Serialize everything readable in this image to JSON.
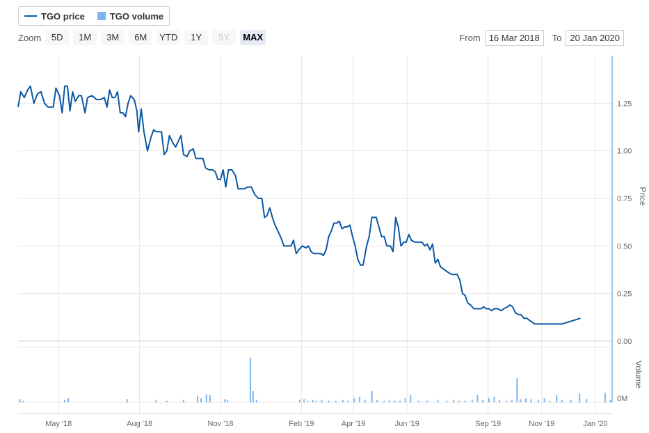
{
  "legend": {
    "price": "TGO price",
    "volume": "TGO volume"
  },
  "zoom": {
    "label": "Zoom",
    "buttons": [
      "5D",
      "1M",
      "3M",
      "6M",
      "YTD",
      "1Y",
      "5Y",
      "MAX"
    ],
    "selected": "MAX",
    "disabled": [
      "5Y"
    ]
  },
  "range": {
    "from_label": "From",
    "from_value": "16 Mar 2018",
    "to_label": "To",
    "to_value": "20 Jan 2020"
  },
  "colors": {
    "price_line": "#0b57a4",
    "volume_bar": "#7cb5ec",
    "grid": "#e6e6e6"
  },
  "chart_data": {
    "type": "line",
    "x_range": [
      "2018-03-16",
      "2020-01-20"
    ],
    "x_tick_labels": [
      "May '18",
      "Aug '18",
      "Nov '18",
      "Feb '19",
      "Apr '19",
      "Jun '19",
      "Sep '19",
      "Nov '19",
      "Jan '20"
    ],
    "y_axis_title": "Price",
    "y_ticks": [
      "0.00",
      "0.25",
      "0.50",
      "0.75",
      "1.00",
      "1.25"
    ],
    "ylim": [
      0,
      1.5
    ],
    "grid": true,
    "volume_axis_title": "Volume",
    "volume_tick": "0M",
    "series": [
      {
        "name": "TGO price",
        "points": [
          [
            "2018-03-16",
            1.23
          ],
          [
            "2018-03-19",
            1.31
          ],
          [
            "2018-03-23",
            1.28
          ],
          [
            "2018-03-27",
            1.32
          ],
          [
            "2018-03-30",
            1.34
          ],
          [
            "2018-04-03",
            1.25
          ],
          [
            "2018-04-07",
            1.3
          ],
          [
            "2018-04-11",
            1.31
          ],
          [
            "2018-04-15",
            1.25
          ],
          [
            "2018-04-19",
            1.23
          ],
          [
            "2018-04-25",
            1.23
          ],
          [
            "2018-04-28",
            1.33
          ],
          [
            "2018-05-02",
            1.29
          ],
          [
            "2018-05-05",
            1.2
          ],
          [
            "2018-05-08",
            1.34
          ],
          [
            "2018-05-11",
            1.34
          ],
          [
            "2018-05-14",
            1.21
          ],
          [
            "2018-05-17",
            1.31
          ],
          [
            "2018-05-20",
            1.26
          ],
          [
            "2018-05-24",
            1.29
          ],
          [
            "2018-05-27",
            1.29
          ],
          [
            "2018-05-31",
            1.2
          ],
          [
            "2018-06-03",
            1.28
          ],
          [
            "2018-06-08",
            1.29
          ],
          [
            "2018-06-13",
            1.27
          ],
          [
            "2018-06-18",
            1.27
          ],
          [
            "2018-06-22",
            1.28
          ],
          [
            "2018-06-25",
            1.23
          ],
          [
            "2018-06-28",
            1.32
          ],
          [
            "2018-07-01",
            1.28
          ],
          [
            "2018-07-04",
            1.28
          ],
          [
            "2018-07-07",
            1.31
          ],
          [
            "2018-07-10",
            1.2
          ],
          [
            "2018-07-13",
            1.2
          ],
          [
            "2018-07-16",
            1.18
          ],
          [
            "2018-07-19",
            1.25
          ],
          [
            "2018-07-22",
            1.29
          ],
          [
            "2018-07-26",
            1.27
          ],
          [
            "2018-07-29",
            1.21
          ],
          [
            "2018-07-31",
            1.1
          ],
          [
            "2018-08-03",
            1.22
          ],
          [
            "2018-08-06",
            1.1
          ],
          [
            "2018-08-10",
            1.0
          ],
          [
            "2018-08-14",
            1.07
          ],
          [
            "2018-08-17",
            1.11
          ],
          [
            "2018-08-20",
            1.1
          ],
          [
            "2018-08-23",
            1.1
          ],
          [
            "2018-08-26",
            1.1
          ],
          [
            "2018-08-29",
            0.98
          ],
          [
            "2018-09-01",
            1.0
          ],
          [
            "2018-09-04",
            1.08
          ],
          [
            "2018-09-08",
            1.04
          ],
          [
            "2018-09-11",
            1.02
          ],
          [
            "2018-09-14",
            1.05
          ],
          [
            "2018-09-17",
            1.08
          ],
          [
            "2018-09-20",
            0.98
          ],
          [
            "2018-09-24",
            0.97
          ],
          [
            "2018-09-27",
            1.0
          ],
          [
            "2018-10-01",
            1.01
          ],
          [
            "2018-10-04",
            0.96
          ],
          [
            "2018-10-08",
            0.96
          ],
          [
            "2018-10-12",
            0.96
          ],
          [
            "2018-10-15",
            0.91
          ],
          [
            "2018-10-19",
            0.9
          ],
          [
            "2018-10-23",
            0.9
          ],
          [
            "2018-10-26",
            0.89
          ],
          [
            "2018-10-29",
            0.85
          ],
          [
            "2018-11-01",
            0.85
          ],
          [
            "2018-11-04",
            0.9
          ],
          [
            "2018-11-07",
            0.81
          ],
          [
            "2018-11-10",
            0.9
          ],
          [
            "2018-11-14",
            0.9
          ],
          [
            "2018-11-18",
            0.87
          ],
          [
            "2018-11-21",
            0.8
          ],
          [
            "2018-11-25",
            0.8
          ],
          [
            "2018-11-28",
            0.8
          ],
          [
            "2018-12-02",
            0.81
          ],
          [
            "2018-12-06",
            0.81
          ],
          [
            "2018-12-10",
            0.77
          ],
          [
            "2018-12-14",
            0.75
          ],
          [
            "2018-12-18",
            0.75
          ],
          [
            "2018-12-21",
            0.65
          ],
          [
            "2018-12-24",
            0.66
          ],
          [
            "2018-12-27",
            0.7
          ],
          [
            "2018-12-30",
            0.65
          ],
          [
            "2019-01-02",
            0.61
          ],
          [
            "2019-01-06",
            0.57
          ],
          [
            "2019-01-09",
            0.54
          ],
          [
            "2019-01-12",
            0.5
          ],
          [
            "2019-01-16",
            0.5
          ],
          [
            "2019-01-20",
            0.5
          ],
          [
            "2019-01-23",
            0.53
          ],
          [
            "2019-01-26",
            0.46
          ],
          [
            "2019-01-29",
            0.48
          ],
          [
            "2019-02-02",
            0.5
          ],
          [
            "2019-02-06",
            0.49
          ],
          [
            "2019-02-09",
            0.5
          ],
          [
            "2019-02-12",
            0.47
          ],
          [
            "2019-02-15",
            0.46
          ],
          [
            "2019-02-19",
            0.46
          ],
          [
            "2019-02-23",
            0.46
          ],
          [
            "2019-02-26",
            0.45
          ],
          [
            "2019-03-01",
            0.48
          ],
          [
            "2019-03-04",
            0.55
          ],
          [
            "2019-03-07",
            0.58
          ],
          [
            "2019-03-10",
            0.62
          ],
          [
            "2019-03-13",
            0.62
          ],
          [
            "2019-03-16",
            0.63
          ],
          [
            "2019-03-19",
            0.59
          ],
          [
            "2019-03-22",
            0.6
          ],
          [
            "2019-03-25",
            0.6
          ],
          [
            "2019-03-28",
            0.61
          ],
          [
            "2019-03-31",
            0.55
          ],
          [
            "2019-04-03",
            0.5
          ],
          [
            "2019-04-06",
            0.43
          ],
          [
            "2019-04-09",
            0.4
          ],
          [
            "2019-04-12",
            0.4
          ],
          [
            "2019-04-16",
            0.5
          ],
          [
            "2019-04-19",
            0.55
          ],
          [
            "2019-04-22",
            0.65
          ],
          [
            "2019-04-27",
            0.65
          ],
          [
            "2019-04-30",
            0.6
          ],
          [
            "2019-05-03",
            0.55
          ],
          [
            "2019-05-06",
            0.55
          ],
          [
            "2019-05-09",
            0.5
          ],
          [
            "2019-05-13",
            0.5
          ],
          [
            "2019-05-16",
            0.47
          ],
          [
            "2019-05-19",
            0.65
          ],
          [
            "2019-05-22",
            0.6
          ],
          [
            "2019-05-25",
            0.5
          ],
          [
            "2019-05-28",
            0.52
          ],
          [
            "2019-05-31",
            0.52
          ],
          [
            "2019-06-03",
            0.56
          ],
          [
            "2019-06-06",
            0.53
          ],
          [
            "2019-06-10",
            0.52
          ],
          [
            "2019-06-14",
            0.52
          ],
          [
            "2019-06-18",
            0.52
          ],
          [
            "2019-06-21",
            0.5
          ],
          [
            "2019-06-24",
            0.51
          ],
          [
            "2019-06-27",
            0.48
          ],
          [
            "2019-06-30",
            0.51
          ],
          [
            "2019-07-03",
            0.41
          ],
          [
            "2019-07-06",
            0.43
          ],
          [
            "2019-07-09",
            0.39
          ],
          [
            "2019-07-12",
            0.38
          ],
          [
            "2019-07-15",
            0.37
          ],
          [
            "2019-07-18",
            0.36
          ],
          [
            "2019-07-22",
            0.35
          ],
          [
            "2019-07-25",
            0.35
          ],
          [
            "2019-07-28",
            0.35
          ],
          [
            "2019-07-31",
            0.32
          ],
          [
            "2019-08-03",
            0.25
          ],
          [
            "2019-08-06",
            0.24
          ],
          [
            "2019-08-09",
            0.2
          ],
          [
            "2019-08-12",
            0.19
          ],
          [
            "2019-08-16",
            0.17
          ],
          [
            "2019-08-20",
            0.17
          ],
          [
            "2019-08-24",
            0.17
          ],
          [
            "2019-08-27",
            0.18
          ],
          [
            "2019-08-30",
            0.17
          ],
          [
            "2019-09-02",
            0.17
          ],
          [
            "2019-09-05",
            0.16
          ],
          [
            "2019-09-08",
            0.17
          ],
          [
            "2019-09-12",
            0.17
          ],
          [
            "2019-09-16",
            0.16
          ],
          [
            "2019-09-19",
            0.17
          ],
          [
            "2019-09-23",
            0.18
          ],
          [
            "2019-09-26",
            0.19
          ],
          [
            "2019-09-29",
            0.18
          ],
          [
            "2019-10-02",
            0.15
          ],
          [
            "2019-10-05",
            0.14
          ],
          [
            "2019-10-08",
            0.14
          ],
          [
            "2019-10-12",
            0.12
          ],
          [
            "2019-10-15",
            0.12
          ],
          [
            "2019-10-18",
            0.11
          ],
          [
            "2019-10-21",
            0.1
          ],
          [
            "2019-10-24",
            0.09
          ],
          [
            "2019-10-27",
            0.09
          ],
          [
            "2019-11-03",
            0.09
          ],
          [
            "2019-11-10",
            0.09
          ],
          [
            "2019-11-17",
            0.09
          ],
          [
            "2019-11-24",
            0.09
          ],
          [
            "2019-12-01",
            0.1
          ],
          [
            "2019-12-08",
            0.11
          ],
          [
            "2019-12-15",
            0.12
          ]
        ]
      },
      {
        "name": "TGO volume",
        "points": [
          [
            "2018-03-18",
            4
          ],
          [
            "2018-03-22",
            2
          ],
          [
            "2018-05-08",
            3
          ],
          [
            "2018-05-12",
            5
          ],
          [
            "2018-07-18",
            4
          ],
          [
            "2018-08-20",
            3
          ],
          [
            "2018-09-01",
            2
          ],
          [
            "2018-09-20",
            3
          ],
          [
            "2018-10-06",
            8
          ],
          [
            "2018-10-10",
            5
          ],
          [
            "2018-10-16",
            10
          ],
          [
            "2018-10-20",
            9
          ],
          [
            "2018-11-06",
            4
          ],
          [
            "2018-11-09",
            3
          ],
          [
            "2018-12-05",
            55
          ],
          [
            "2018-12-08",
            14
          ],
          [
            "2018-12-12",
            3
          ],
          [
            "2019-01-30",
            3
          ],
          [
            "2019-02-04",
            4
          ],
          [
            "2019-02-08",
            2
          ],
          [
            "2019-02-14",
            3
          ],
          [
            "2019-02-18",
            2
          ],
          [
            "2019-02-24",
            3
          ],
          [
            "2019-03-04",
            2
          ],
          [
            "2019-03-12",
            2
          ],
          [
            "2019-03-20",
            3
          ],
          [
            "2019-03-26",
            2
          ],
          [
            "2019-04-02",
            5
          ],
          [
            "2019-04-08",
            7
          ],
          [
            "2019-04-14",
            3
          ],
          [
            "2019-04-22",
            14
          ],
          [
            "2019-04-28",
            3
          ],
          [
            "2019-05-06",
            2
          ],
          [
            "2019-05-12",
            3
          ],
          [
            "2019-05-18",
            2
          ],
          [
            "2019-05-24",
            2
          ],
          [
            "2019-05-30",
            5
          ],
          [
            "2019-06-05",
            9
          ],
          [
            "2019-06-14",
            2
          ],
          [
            "2019-06-24",
            2
          ],
          [
            "2019-07-06",
            3
          ],
          [
            "2019-07-16",
            2
          ],
          [
            "2019-07-24",
            3
          ],
          [
            "2019-07-30",
            2
          ],
          [
            "2019-08-06",
            2
          ],
          [
            "2019-08-14",
            3
          ],
          [
            "2019-08-20",
            9
          ],
          [
            "2019-08-26",
            3
          ],
          [
            "2019-09-02",
            5
          ],
          [
            "2019-09-08",
            7
          ],
          [
            "2019-09-14",
            3
          ],
          [
            "2019-09-22",
            2
          ],
          [
            "2019-09-28",
            3
          ],
          [
            "2019-10-04",
            30
          ],
          [
            "2019-10-08",
            4
          ],
          [
            "2019-10-14",
            5
          ],
          [
            "2019-10-20",
            4
          ],
          [
            "2019-10-28",
            3
          ],
          [
            "2019-11-04",
            5
          ],
          [
            "2019-11-10",
            2
          ],
          [
            "2019-11-18",
            9
          ],
          [
            "2019-11-24",
            3
          ],
          [
            "2019-12-04",
            3
          ],
          [
            "2019-12-14",
            11
          ],
          [
            "2019-12-22",
            4
          ],
          [
            "2020-01-12",
            12
          ],
          [
            "2020-01-18",
            3
          ]
        ]
      }
    ]
  }
}
